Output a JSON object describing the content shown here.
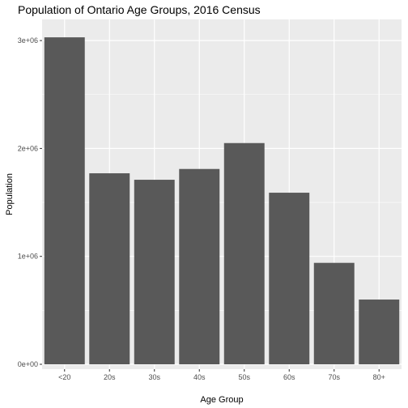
{
  "chart_data": {
    "type": "bar",
    "title": "Population of Ontario Age Groups, 2016 Census",
    "xlabel": "Age Group",
    "ylabel": "Population",
    "categories": [
      "<20",
      "20s",
      "30s",
      "40s",
      "50s",
      "60s",
      "70s",
      "80+"
    ],
    "values": [
      3030000,
      1770000,
      1710000,
      1810000,
      2050000,
      1590000,
      940000,
      600000
    ],
    "ylim": [
      0,
      3180000
    ],
    "yticks": [
      0,
      1000000,
      2000000,
      3000000
    ],
    "ytick_labels": [
      "0e+00",
      "1e+06",
      "2e+06",
      "3e+06"
    ],
    "grid": true,
    "colors": {
      "bar": "#595959",
      "panel_background": "#ebebeb",
      "grid_major": "#ffffff",
      "tick_text": "#4d4d4d"
    }
  }
}
